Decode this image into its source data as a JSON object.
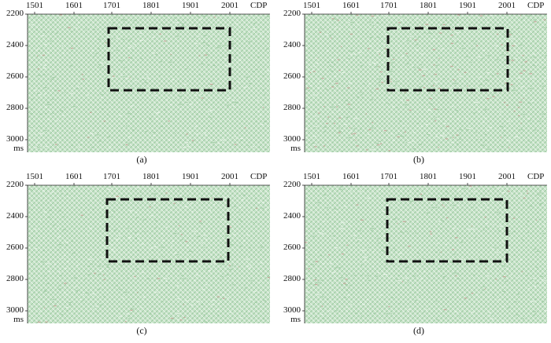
{
  "figure": {
    "panels": [
      {
        "caption": "(a)",
        "x_ticks": [
          "1501",
          "1601",
          "1701",
          "1801",
          "1901",
          "2001"
        ],
        "x_unit": "CDP",
        "y_ticks": [
          "2200",
          "2400",
          "2600",
          "2800",
          "3000"
        ],
        "y_unit": "ms"
      },
      {
        "caption": "(b)",
        "x_ticks": [
          "1501",
          "1601",
          "1701",
          "1801",
          "1901",
          "2001"
        ],
        "x_unit": "CDP",
        "y_ticks": [
          "2200",
          "2400",
          "2600",
          "2800",
          "3000"
        ],
        "y_unit": "ms"
      },
      {
        "caption": "(c)",
        "x_ticks": [
          "1501",
          "1601",
          "1701",
          "1801",
          "1901",
          "2001"
        ],
        "x_unit": "CDP",
        "y_ticks": [
          "2200",
          "2400",
          "2600",
          "2800",
          "3000"
        ],
        "y_unit": "ms"
      },
      {
        "caption": "(d)",
        "x_ticks": [
          "1501",
          "1601",
          "1701",
          "1801",
          "1901",
          "2001"
        ],
        "x_unit": "CDP",
        "y_ticks": [
          "2200",
          "2400",
          "2600",
          "2800",
          "3000"
        ],
        "y_unit": "ms"
      }
    ],
    "colors": {
      "background": "#c7e3c9",
      "noise_dark": "#9cc9a0",
      "noise_light": "#eef7ee",
      "noise_red": "#c69a90",
      "box": "#111111"
    }
  }
}
